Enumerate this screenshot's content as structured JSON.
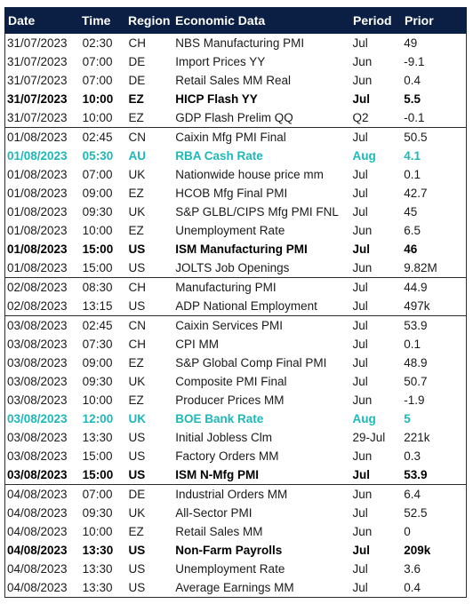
{
  "header": {
    "date": "Date",
    "time": "Time",
    "region": "Region",
    "economic_data": "Economic Data",
    "period": "Period",
    "prior": "Prior"
  },
  "colors": {
    "header_bg": "#0b1f44",
    "highlight": "#1fb8b8"
  },
  "groups": [
    {
      "rows": [
        {
          "date": "31/07/2023",
          "time": "02:30",
          "region": "CH",
          "event": "NBS Manufacturing PMI",
          "period": "Jul",
          "prior": "49",
          "style": "normal"
        },
        {
          "date": "31/07/2023",
          "time": "07:00",
          "region": "DE",
          "event": "Import Prices YY",
          "period": "Jun",
          "prior": "-9.1",
          "style": "normal"
        },
        {
          "date": "31/07/2023",
          "time": "07:00",
          "region": "DE",
          "event": "Retail Sales MM Real",
          "period": "Jun",
          "prior": "0.4",
          "style": "normal"
        },
        {
          "date": "31/07/2023",
          "time": "10:00",
          "region": "EZ",
          "event": "HICP Flash YY",
          "period": "Jul",
          "prior": "5.5",
          "style": "bold"
        },
        {
          "date": "31/07/2023",
          "time": "10:00",
          "region": "EZ",
          "event": "GDP Flash Prelim QQ",
          "period": "Q2",
          "prior": "-0.1",
          "style": "normal"
        }
      ]
    },
    {
      "rows": [
        {
          "date": "01/08/2023",
          "time": "02:45",
          "region": "CN",
          "event": "Caixin Mfg PMI Final",
          "period": "Jul",
          "prior": "50.5",
          "style": "normal"
        },
        {
          "date": "01/08/2023",
          "time": "05:30",
          "region": "AU",
          "event": "RBA Cash Rate",
          "period": "Aug",
          "prior": "4.1",
          "style": "teal"
        },
        {
          "date": "01/08/2023",
          "time": "07:00",
          "region": "UK",
          "event": "Nationwide house price mm",
          "period": "Jul",
          "prior": "0.1",
          "style": "normal"
        },
        {
          "date": "01/08/2023",
          "time": "09:00",
          "region": "EZ",
          "event": "HCOB Mfg Final PMI",
          "period": "Jul",
          "prior": "42.7",
          "style": "normal"
        },
        {
          "date": "01/08/2023",
          "time": "09:30",
          "region": "UK",
          "event": "S&P GLBL/CIPS Mfg PMI FNL",
          "period": "Jul",
          "prior": "45",
          "style": "normal"
        },
        {
          "date": "01/08/2023",
          "time": "10:00",
          "region": "EZ",
          "event": "Unemployment Rate",
          "period": "Jun",
          "prior": "6.5",
          "style": "normal"
        },
        {
          "date": "01/08/2023",
          "time": "15:00",
          "region": "US",
          "event": "ISM Manufacturing PMI",
          "period": "Jul",
          "prior": "46",
          "style": "bold"
        },
        {
          "date": "01/08/2023",
          "time": "15:00",
          "region": "US",
          "event": "JOLTS Job Openings",
          "period": "Jun",
          "prior": "9.82M",
          "style": "normal"
        }
      ]
    },
    {
      "rows": [
        {
          "date": "02/08/2023",
          "time": "08:30",
          "region": "CH",
          "event": "Manufacturing PMI",
          "period": "Jul",
          "prior": "44.9",
          "style": "normal"
        },
        {
          "date": "02/08/2023",
          "time": "13:15",
          "region": "US",
          "event": "ADP National Employment",
          "period": "Jul",
          "prior": "497k",
          "style": "normal"
        }
      ]
    },
    {
      "rows": [
        {
          "date": "03/08/2023",
          "time": "02:45",
          "region": "CN",
          "event": "Caixin Services PMI",
          "period": "Jul",
          "prior": "53.9",
          "style": "normal"
        },
        {
          "date": "03/08/2023",
          "time": "07:30",
          "region": "CH",
          "event": "CPI MM",
          "period": "Jul",
          "prior": "0.1",
          "style": "normal"
        },
        {
          "date": "03/08/2023",
          "time": "09:00",
          "region": "EZ",
          "event": "S&P Global Comp Final PMI",
          "period": "Jul",
          "prior": "48.9",
          "style": "normal"
        },
        {
          "date": "03/08/2023",
          "time": "09:30",
          "region": "UK",
          "event": "Composite PMI Final",
          "period": "Jul",
          "prior": "50.7",
          "style": "normal"
        },
        {
          "date": "03/08/2023",
          "time": "10:00",
          "region": "EZ",
          "event": "Producer Prices MM",
          "period": "Jun",
          "prior": "-1.9",
          "style": "normal"
        },
        {
          "date": "03/08/2023",
          "time": "12:00",
          "region": "UK",
          "event": "BOE Bank Rate",
          "period": "Aug",
          "prior": "5",
          "style": "teal"
        },
        {
          "date": "03/08/2023",
          "time": "13:30",
          "region": "US",
          "event": "Initial Jobless Clm",
          "period": "29-Jul",
          "prior": "221k",
          "style": "normal"
        },
        {
          "date": "03/08/2023",
          "time": "15:00",
          "region": "US",
          "event": "Factory Orders MM",
          "period": "Jun",
          "prior": "0.3",
          "style": "normal"
        },
        {
          "date": "03/08/2023",
          "time": "15:00",
          "region": "US",
          "event": "ISM N-Mfg PMI",
          "period": "Jul",
          "prior": "53.9",
          "style": "bold"
        }
      ]
    },
    {
      "rows": [
        {
          "date": "04/08/2023",
          "time": "07:00",
          "region": "DE",
          "event": "Industrial Orders MM",
          "period": "Jun",
          "prior": "6.4",
          "style": "normal"
        },
        {
          "date": "04/08/2023",
          "time": "09:30",
          "region": "UK",
          "event": "All-Sector PMI",
          "period": "Jul",
          "prior": "52.5",
          "style": "normal"
        },
        {
          "date": "04/08/2023",
          "time": "10:00",
          "region": "EZ",
          "event": "Retail Sales MM",
          "period": "Jun",
          "prior": "0",
          "style": "normal"
        },
        {
          "date": "04/08/2023",
          "time": "13:30",
          "region": "US",
          "event": "Non-Farm Payrolls",
          "period": "Jul",
          "prior": "209k",
          "style": "bold"
        },
        {
          "date": "04/08/2023",
          "time": "13:30",
          "region": "US",
          "event": "Unemployment Rate",
          "period": "Jul",
          "prior": "3.6",
          "style": "normal"
        },
        {
          "date": "04/08/2023",
          "time": "13:30",
          "region": "US",
          "event": "Average Earnings MM",
          "period": "Jul",
          "prior": "0.4",
          "style": "normal"
        }
      ]
    }
  ]
}
